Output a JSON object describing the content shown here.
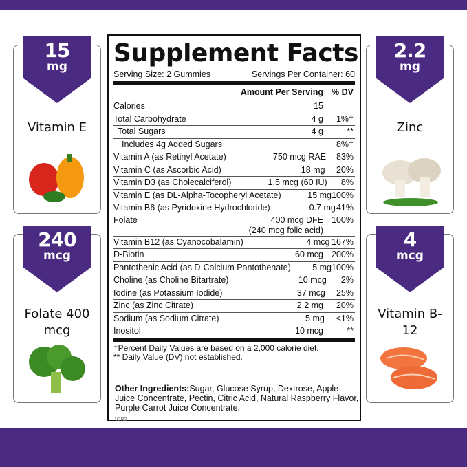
{
  "colors": {
    "brand_purple": "#4b2a82"
  },
  "cards": [
    {
      "amount": "15",
      "unit": "mg",
      "name": "Vitamin E",
      "icon": "bell-pepper-icon"
    },
    {
      "amount": "240",
      "unit": "mcg",
      "name": "Folate 400 mcg",
      "icon": "broccoli-icon"
    },
    {
      "amount": "2.2",
      "unit": "mg",
      "name": "Zinc",
      "icon": "mushroom-icon"
    },
    {
      "amount": "4",
      "unit": "mcg",
      "name": "Vitamin B-12",
      "icon": "salmon-icon"
    }
  ],
  "facts": {
    "title": "Supplement Facts",
    "serving_size": "Serving Size: 2 Gummies",
    "servings_per_container": "Servings Per Container: 60",
    "col_amount": "Amount Per Serving",
    "col_dv": "% DV",
    "rows": [
      {
        "name": "Calories",
        "amount": "15",
        "dv": ""
      },
      {
        "name": "Total Carbohydrate",
        "amount": "4 g",
        "dv": "1%†"
      },
      {
        "name": "  Total Sugars",
        "amount": "4 g",
        "dv": "**"
      },
      {
        "name": "    Includes 4g Added Sugars",
        "amount": "",
        "dv": "8%†"
      },
      {
        "name": "Vitamin A (as Retinyl Acetate)",
        "amount": "750 mcg RAE",
        "dv": "83%"
      },
      {
        "name": "Vitamin C (as Ascorbic Acid)",
        "amount": "18 mg",
        "dv": "20%"
      },
      {
        "name": "Vitamin D3 (as Cholecalciferol)",
        "amount": "1.5 mcg (60 IU)",
        "dv": "8%"
      },
      {
        "name": "Vitamin E (as DL-Alpha-Tocopheryl Acetate)",
        "amount": "15 mg",
        "dv": "100%"
      },
      {
        "name": "Vitamin B6 (as Pyridoxine Hydrochloride)",
        "amount": "0.7 mg",
        "dv": "41%"
      },
      {
        "name": "Folate",
        "amount": "400 mcg DFE",
        "amount2": "(240 mcg folic acid)",
        "dv": "100%"
      },
      {
        "name": "Vitamin B12 (as Cyanocobalamin)",
        "amount": "4 mcg",
        "dv": "167%"
      },
      {
        "name": "D-Biotin",
        "amount": "60 mcg",
        "dv": "200%"
      },
      {
        "name": "Pantothenic Acid (as D-Calcium Pantothenate)",
        "amount": "5 mg",
        "dv": "100%"
      },
      {
        "name": "Choline (as Choline Bitartrate)",
        "amount": "10 mcg",
        "dv": "2%"
      },
      {
        "name": "Iodine (as Potassium Iodide)",
        "amount": "37 mcg",
        "dv": "25%"
      },
      {
        "name": "Zinc (as Zinc Citrate)",
        "amount": "2.2 mg",
        "dv": "20%"
      },
      {
        "name": "Sodium (as Sodium Citrate)",
        "amount": "5 mg",
        "dv": "<1%"
      },
      {
        "name": "Inositol",
        "amount": "10 mcg",
        "dv": "**"
      }
    ],
    "footnote1": "†Percent Daily Values are based on a 2,000 calorie diet.",
    "footnote2": "** Daily Value (DV) not established."
  },
  "other_ingredients_label": "Other Ingredients:",
  "other_ingredients": " Sugar, Glucose Syrup, Dextrose, Apple Juice Concentrate, Pectin, Citric Acid, Natural Raspberry Flavor, Purple Carrot Juice Concentrate.",
  "version": "V2R2"
}
